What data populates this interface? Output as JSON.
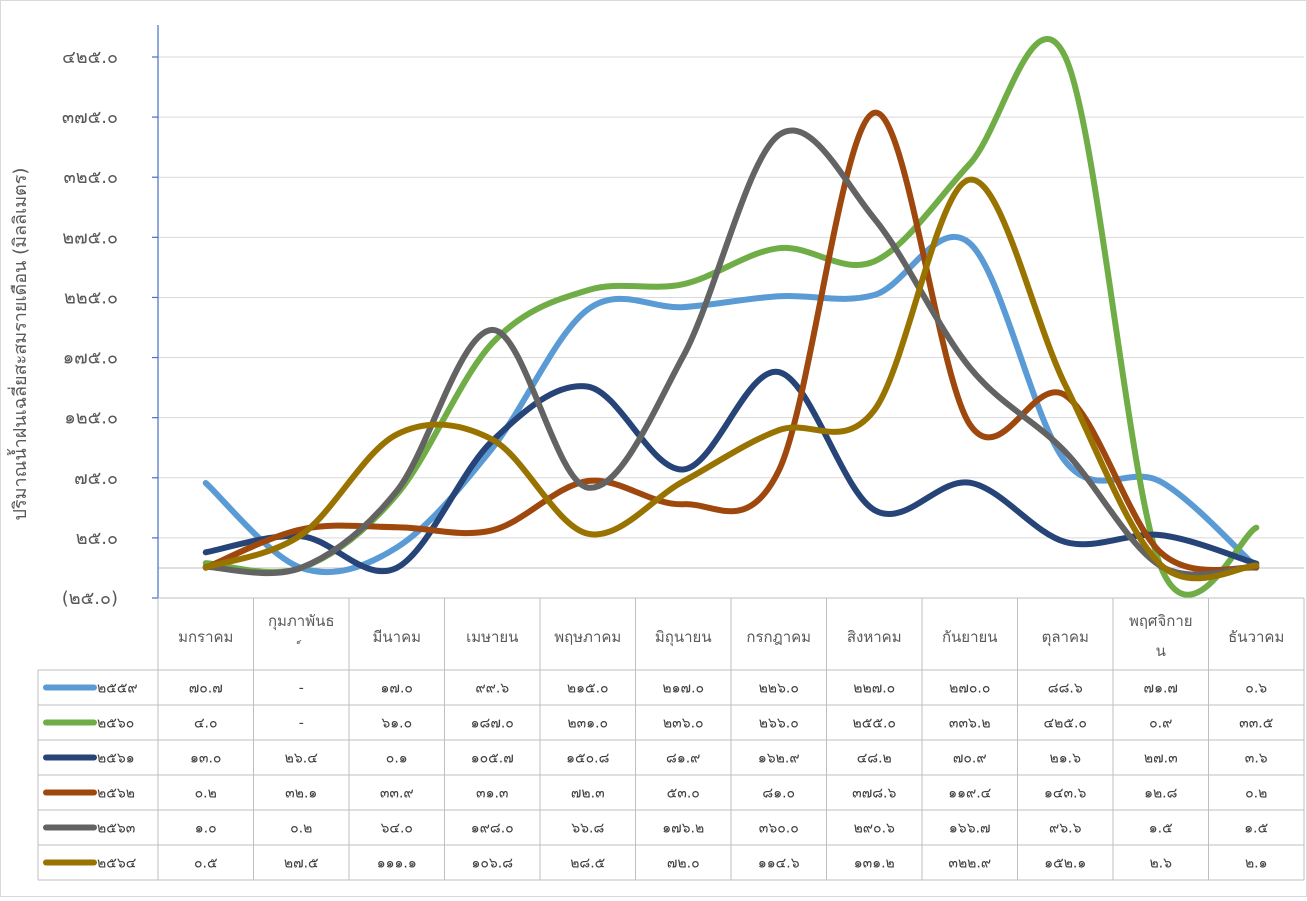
{
  "chart_data": {
    "type": "line",
    "title": "",
    "xlabel": "",
    "ylabel": "ปริมาณน้ำฝนเฉลี่ยสะสมรายเดือน (มิลลิเมตร)",
    "ylim": [
      -25,
      425
    ],
    "ytick_values": [
      -25,
      25,
      75,
      125,
      175,
      225,
      275,
      325,
      375,
      425
    ],
    "ytick_labels": [
      "(๒๕.๐)",
      "๒๕.๐",
      "๗๕.๐",
      "๑๒๕.๐",
      "๑๗๕.๐",
      "๒๒๕.๐",
      "๒๗๕.๐",
      "๓๒๕.๐",
      "๓๗๕.๐",
      "๔๒๕.๐"
    ],
    "categories": [
      "มกราคม",
      "กุมภาพันธ์",
      "มีนาคม",
      "เมษายน",
      "พฤษภาคม",
      "มิถุนายน",
      "กรกฎาคม",
      "สิงหาคม",
      "กันยายน",
      "ตุลาคม",
      "พฤศจิกายน",
      "ธันวาคม"
    ],
    "grid": true,
    "legend": "data-table",
    "series": [
      {
        "name": "๒๕๕๙",
        "color": "#5B9BD5",
        "values": [
          70.7,
          0,
          17.0,
          99.6,
          215.0,
          217.0,
          226.0,
          227.0,
          270.0,
          88.6,
          71.7,
          0.6
        ],
        "labels": [
          "๗๐.๗",
          "-",
          "๑๗.๐",
          "๙๙.๖",
          "๒๑๕.๐",
          "๒๑๗.๐",
          "๒๒๖.๐",
          "๒๒๗.๐",
          "๒๗๐.๐",
          "๘๘.๖",
          "๗๑.๗",
          "๐.๖"
        ]
      },
      {
        "name": "๒๕๖๐",
        "color": "#70AD47",
        "values": [
          4.0,
          0,
          61.0,
          187.0,
          231.0,
          236.0,
          266.0,
          255.0,
          336.2,
          425.0,
          0.9,
          33.5
        ],
        "labels": [
          "๔.๐",
          "-",
          "๖๑.๐",
          "๑๘๗.๐",
          "๒๓๑.๐",
          "๒๓๖.๐",
          "๒๖๖.๐",
          "๒๕๕.๐",
          "๓๓๖.๒",
          "๔๒๕.๐",
          "๐.๙",
          "๓๓.๕"
        ]
      },
      {
        "name": "๒๕๖๑",
        "color": "#264478",
        "values": [
          13.0,
          26.4,
          0.1,
          105.7,
          150.8,
          81.9,
          162.9,
          48.2,
          70.9,
          21.6,
          27.3,
          3.6
        ],
        "labels": [
          "๑๓.๐",
          "๒๖.๔",
          "๐.๑",
          "๑๐๕.๗",
          "๑๕๐.๘",
          "๘๑.๙",
          "๑๖๒.๙",
          "๔๘.๒",
          "๗๐.๙",
          "๒๑.๖",
          "๒๗.๓",
          "๓.๖"
        ]
      },
      {
        "name": "๒๕๖๒",
        "color": "#9E480E",
        "values": [
          0.2,
          32.1,
          33.9,
          31.3,
          72.3,
          53.0,
          81.0,
          378.6,
          119.4,
          143.6,
          12.8,
          0.2
        ],
        "labels": [
          "๐.๒",
          "๓๒.๑",
          "๓๓.๙",
          "๓๑.๓",
          "๗๒.๓",
          "๕๓.๐",
          "๘๑.๐",
          "๓๗๘.๖",
          "๑๑๙.๔",
          "๑๔๓.๖",
          "๑๒.๘",
          "๐.๒"
        ]
      },
      {
        "name": "๒๕๖๓",
        "color": "#636363",
        "values": [
          1.0,
          0.2,
          64.0,
          198.0,
          66.8,
          176.2,
          360.0,
          290.6,
          166.7,
          96.6,
          1.5,
          1.5
        ],
        "labels": [
          "๑.๐",
          "๐.๒",
          "๖๔.๐",
          "๑๙๘.๐",
          "๖๖.๘",
          "๑๗๖.๒",
          "๓๖๐.๐",
          "๒๙๐.๖",
          "๑๖๖.๗",
          "๙๖.๖",
          "๑.๕",
          "๑.๕"
        ]
      },
      {
        "name": "๒๕๖๔",
        "color": "#997300",
        "values": [
          0.5,
          27.5,
          111.1,
          106.8,
          28.5,
          72.0,
          114.6,
          131.2,
          322.9,
          152.1,
          2.6,
          2.1
        ],
        "labels": [
          "๐.๕",
          "๒๗.๕",
          "๑๑๑.๑",
          "๑๐๖.๘",
          "๒๘.๕",
          "๗๒.๐",
          "๑๑๔.๖",
          "๑๓๑.๒",
          "๓๒๒.๙",
          "๑๕๒.๑",
          "๒.๖",
          "๒.๑"
        ]
      }
    ]
  }
}
